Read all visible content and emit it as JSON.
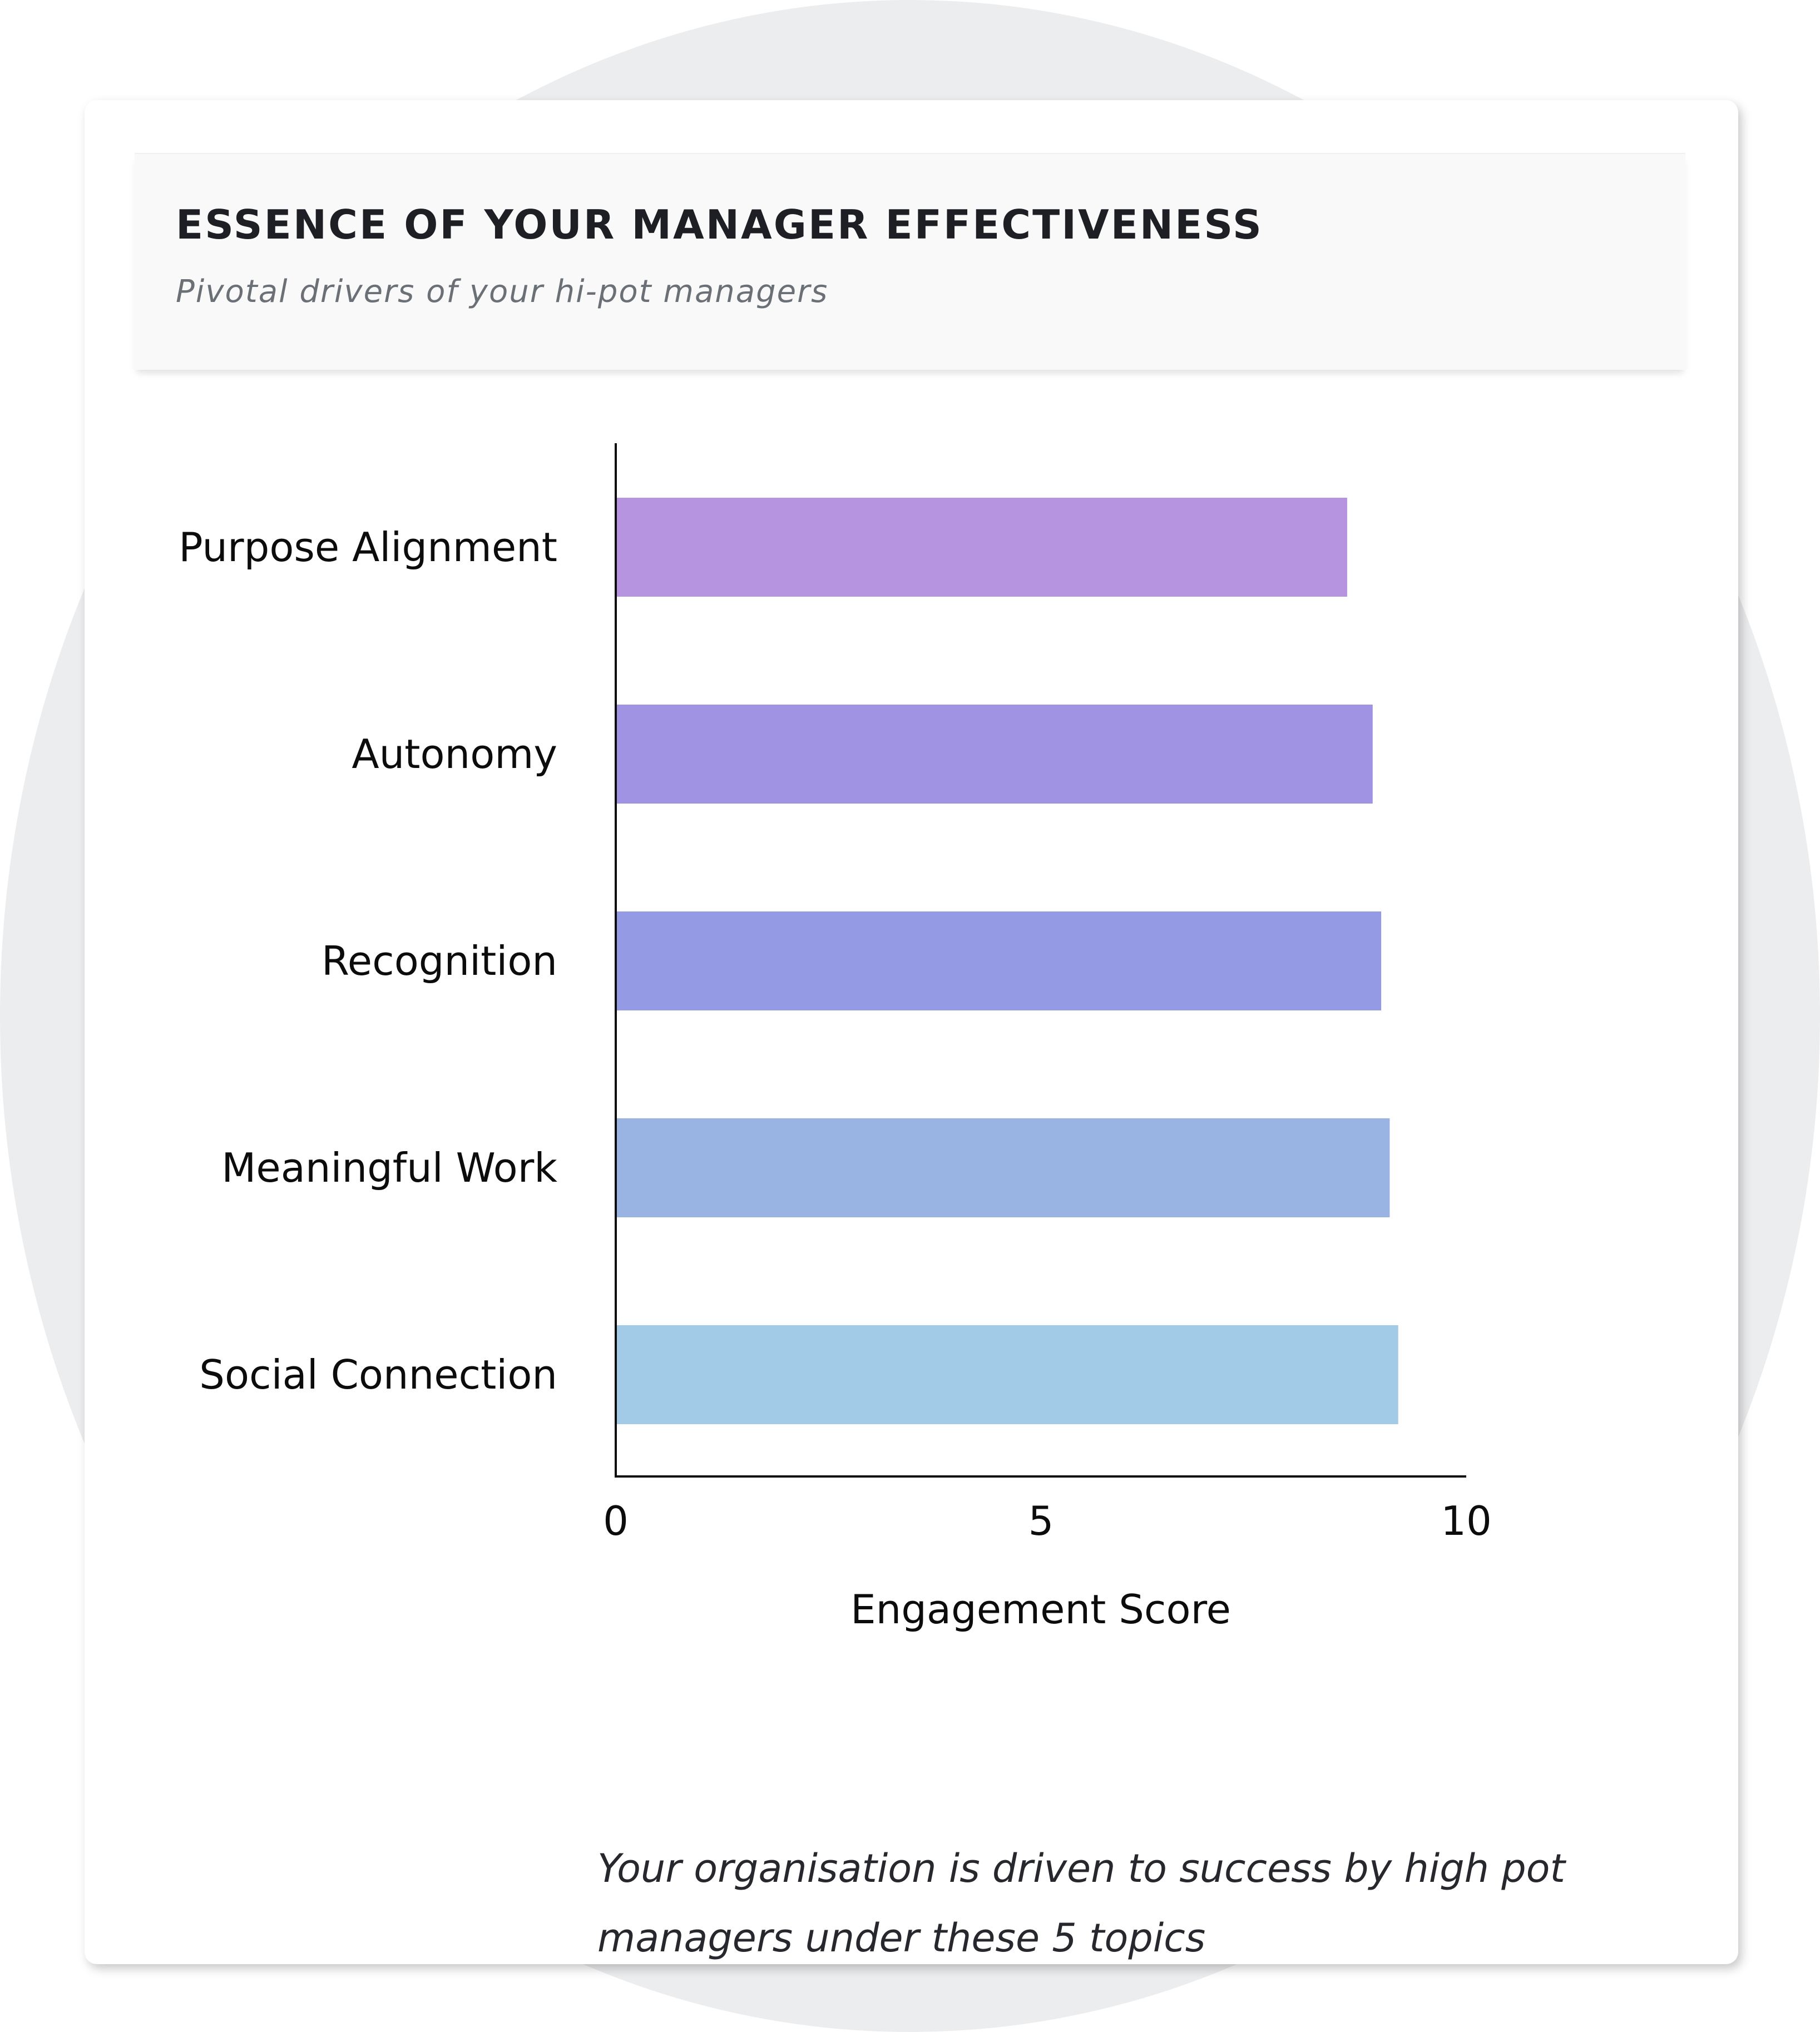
{
  "card": {
    "title": "ESSENCE OF YOUR MANAGER EFFECTIVENESS",
    "subtitle": "Pivotal drivers of your hi-pot managers",
    "caption": "Your organisation is driven to success by high pot managers under these 5 topics"
  },
  "chart_data": {
    "type": "bar",
    "orientation": "horizontal",
    "categories": [
      "Purpose Alignment",
      "Autonomy",
      "Recognition",
      "Meaningful Work",
      "Social Connection"
    ],
    "values": [
      8.6,
      8.9,
      9.0,
      9.1,
      9.2
    ],
    "colors": [
      "#b794e0",
      "#a093e3",
      "#949ae3",
      "#99b3e3",
      "#a1cbe7"
    ],
    "title": "",
    "xlabel": "Engagement Score",
    "ylabel": "",
    "xlim": [
      0,
      10
    ],
    "xticks": [
      "0",
      "5",
      "10"
    ],
    "grid": false,
    "legend": "none"
  }
}
